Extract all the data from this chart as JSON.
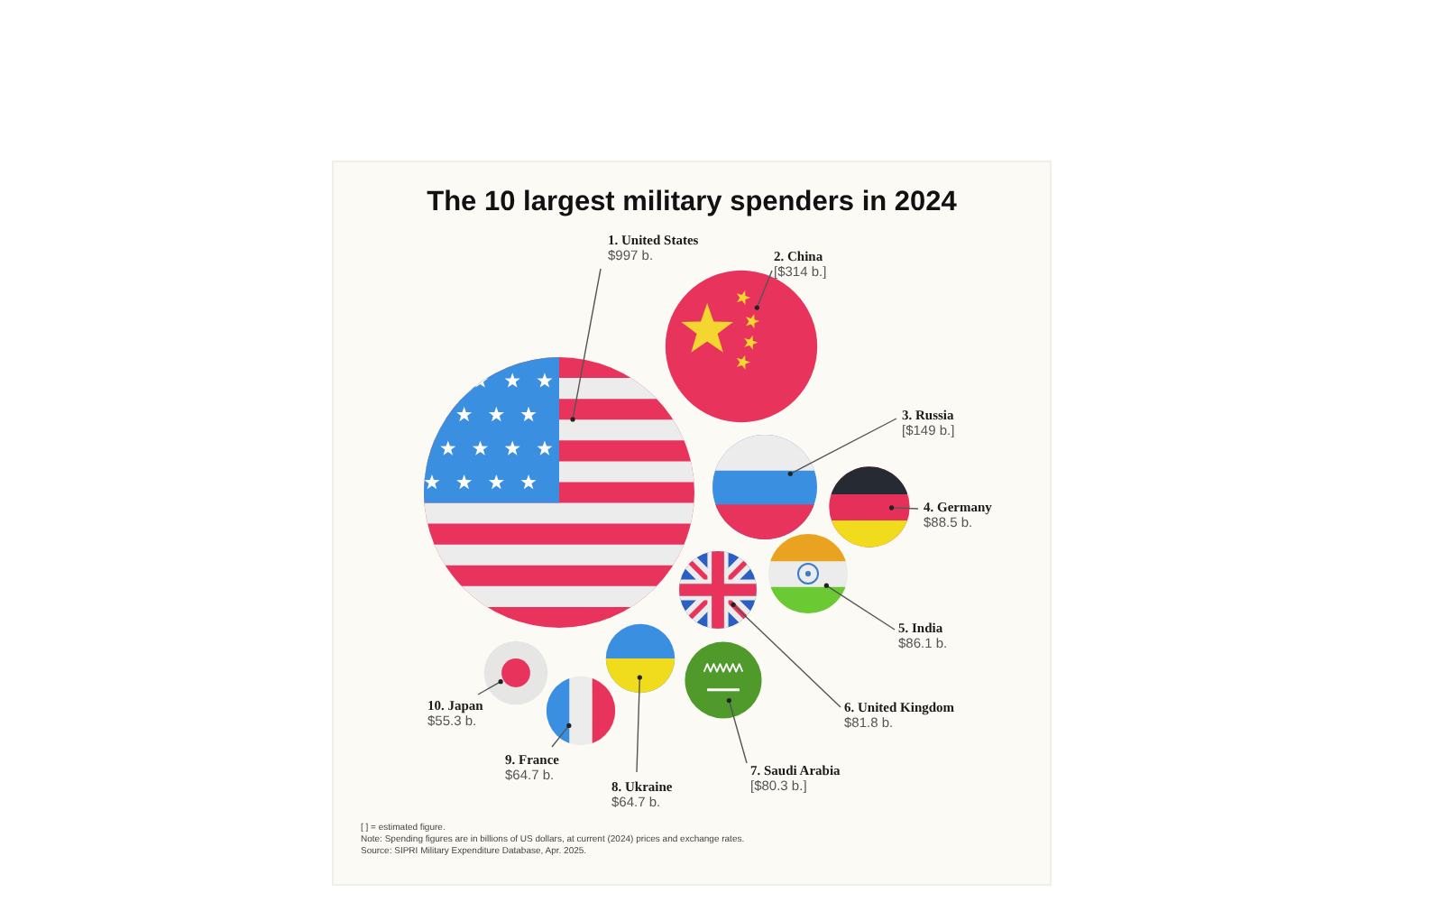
{
  "chart_data": {
    "type": "other",
    "title": "The 10 largest military spenders in 2024",
    "categories": [
      "1. United States",
      "2. China",
      "3. Russia",
      "4. Germany",
      "5. India",
      "6. United Kingdom",
      "7. Saudi Arabia",
      "8. Ukraine",
      "9. France",
      "10. Japan"
    ],
    "values": [
      997,
      314,
      149,
      88.5,
      86.1,
      81.8,
      80.3,
      64.7,
      64.7,
      55.3
    ],
    "value_labels": [
      "$997 b.",
      "[$314 b.]",
      "[$149 b.]",
      "$88.5 b.",
      "$86.1 b.",
      "$81.8 b.",
      "[$80.3 b.]",
      "$64.7 b.",
      "$64.7 b.",
      "$55.3 b."
    ],
    "annotations": [
      "[ ] = estimated figure.",
      "Note: Spending figures are in billions of US dollars, at current (2024) prices and exchange rates.",
      "Source: SIPRI Military Expenditure Database, Apr. 2025."
    ]
  }
}
